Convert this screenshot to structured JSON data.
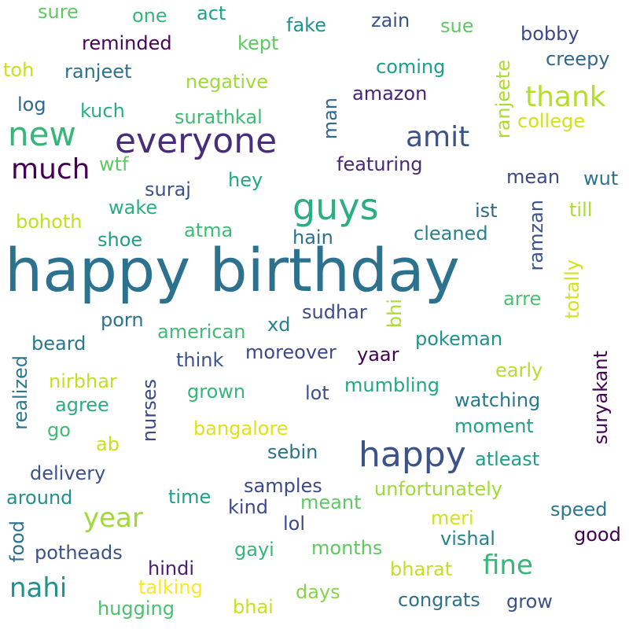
{
  "words": [
    {
      "text": "happy birthday",
      "color": "#2c728e",
      "rotated": false
    },
    {
      "text": "everyone",
      "color": "#472d7b",
      "rotated": false
    },
    {
      "text": "guys",
      "color": "#28ae80",
      "rotated": false
    },
    {
      "text": "happy",
      "color": "#3b528b",
      "rotated": false
    },
    {
      "text": "new",
      "color": "#35b779",
      "rotated": false
    },
    {
      "text": "amit",
      "color": "#3b528b",
      "rotated": false
    },
    {
      "text": "much",
      "color": "#440154",
      "rotated": false
    },
    {
      "text": "thank",
      "color": "#b5de2b",
      "rotated": false
    },
    {
      "text": "year",
      "color": "#a0da39",
      "rotated": false
    },
    {
      "text": "fine",
      "color": "#35b779",
      "rotated": false
    },
    {
      "text": "nahi",
      "color": "#21918c",
      "rotated": false
    },
    {
      "text": "sure",
      "color": "#5ec962",
      "rotated": false
    },
    {
      "text": "one",
      "color": "#35b779",
      "rotated": false
    },
    {
      "text": "act",
      "color": "#1fa187",
      "rotated": false
    },
    {
      "text": "fake",
      "color": "#21918c",
      "rotated": false
    },
    {
      "text": "zain",
      "color": "#3b528b",
      "rotated": false
    },
    {
      "text": "sue",
      "color": "#5ec962",
      "rotated": false
    },
    {
      "text": "bobby",
      "color": "#3e4989",
      "rotated": false
    },
    {
      "text": "reminded",
      "color": "#450457",
      "rotated": false
    },
    {
      "text": "kept",
      "color": "#5ec962",
      "rotated": false
    },
    {
      "text": "creepy",
      "color": "#31688e",
      "rotated": false
    },
    {
      "text": "toh",
      "color": "#c8e020",
      "rotated": false
    },
    {
      "text": "ranjeet",
      "color": "#2c728e",
      "rotated": false
    },
    {
      "text": "coming",
      "color": "#1f9e89",
      "rotated": false
    },
    {
      "text": "negative",
      "color": "#a0da39",
      "rotated": false
    },
    {
      "text": "amazon",
      "color": "#482576",
      "rotated": false
    },
    {
      "text": "log",
      "color": "#31688e",
      "rotated": false
    },
    {
      "text": "kuch",
      "color": "#28ae80",
      "rotated": false
    },
    {
      "text": "surathkal",
      "color": "#3fbc73",
      "rotated": false
    },
    {
      "text": "man",
      "color": "#31688e",
      "rotated": true
    },
    {
      "text": "ranjeete",
      "color": "#addc30",
      "rotated": true
    },
    {
      "text": "college",
      "color": "#d2e21b",
      "rotated": false
    },
    {
      "text": "featuring",
      "color": "#482878",
      "rotated": false
    },
    {
      "text": "wtf",
      "color": "#5ec962",
      "rotated": false
    },
    {
      "text": "hey",
      "color": "#22a884",
      "rotated": false
    },
    {
      "text": "mean",
      "color": "#3e4989",
      "rotated": false
    },
    {
      "text": "wut",
      "color": "#2c728e",
      "rotated": false
    },
    {
      "text": "suraj",
      "color": "#3b528b",
      "rotated": false
    },
    {
      "text": "wake",
      "color": "#29af7f",
      "rotated": false
    },
    {
      "text": "bohoth",
      "color": "#c2df23",
      "rotated": false
    },
    {
      "text": "ist",
      "color": "#31688e",
      "rotated": false
    },
    {
      "text": "till",
      "color": "#addc30",
      "rotated": false
    },
    {
      "text": "ramzan",
      "color": "#3b528b",
      "rotated": true
    },
    {
      "text": "atma",
      "color": "#3fbc73",
      "rotated": false
    },
    {
      "text": "hain",
      "color": "#2c728e",
      "rotated": false
    },
    {
      "text": "cleaned",
      "color": "#26828e",
      "rotated": false
    },
    {
      "text": "shoe",
      "color": "#1f9e89",
      "rotated": false
    },
    {
      "text": "totally",
      "color": "#d2e21b",
      "rotated": true
    },
    {
      "text": "bhi",
      "color": "#addc30",
      "rotated": true
    },
    {
      "text": "arre",
      "color": "#4ac16d",
      "rotated": false
    },
    {
      "text": "sudhar",
      "color": "#3e4989",
      "rotated": false
    },
    {
      "text": "porn",
      "color": "#2c728e",
      "rotated": false
    },
    {
      "text": "american",
      "color": "#3fbc73",
      "rotated": false
    },
    {
      "text": "xd",
      "color": "#26828e",
      "rotated": false
    },
    {
      "text": "beard",
      "color": "#2a788e",
      "rotated": false
    },
    {
      "text": "pokeman",
      "color": "#21918c",
      "rotated": false
    },
    {
      "text": "suryakant",
      "color": "#450457",
      "rotated": true
    },
    {
      "text": "think",
      "color": "#3b528b",
      "rotated": false
    },
    {
      "text": "moreover",
      "color": "#3e4989",
      "rotated": false
    },
    {
      "text": "yaar",
      "color": "#440154",
      "rotated": false
    },
    {
      "text": "early",
      "color": "#b5de2b",
      "rotated": false
    },
    {
      "text": "nirbhar",
      "color": "#c2df23",
      "rotated": false
    },
    {
      "text": "nurses",
      "color": "#3e4989",
      "rotated": true
    },
    {
      "text": "grown",
      "color": "#35b779",
      "rotated": false
    },
    {
      "text": "lot",
      "color": "#3b528b",
      "rotated": false
    },
    {
      "text": "mumbling",
      "color": "#22a884",
      "rotated": false
    },
    {
      "text": "watching",
      "color": "#2a788e",
      "rotated": false
    },
    {
      "text": "realized",
      "color": "#2a788e",
      "rotated": true
    },
    {
      "text": "agree",
      "color": "#29af7f",
      "rotated": false
    },
    {
      "text": "go",
      "color": "#3fbc73",
      "rotated": false
    },
    {
      "text": "bangalore",
      "color": "#dde318",
      "rotated": false
    },
    {
      "text": "moment",
      "color": "#1fa187",
      "rotated": false
    },
    {
      "text": "ab",
      "color": "#c8e020",
      "rotated": false
    },
    {
      "text": "sebin",
      "color": "#2c728e",
      "rotated": false
    },
    {
      "text": "atleast",
      "color": "#1f9e89",
      "rotated": false
    },
    {
      "text": "delivery",
      "color": "#3b528b",
      "rotated": false
    },
    {
      "text": "samples",
      "color": "#3e4989",
      "rotated": false
    },
    {
      "text": "unfortunately",
      "color": "#a0da39",
      "rotated": false
    },
    {
      "text": "around",
      "color": "#21918c",
      "rotated": false
    },
    {
      "text": "time",
      "color": "#1fa187",
      "rotated": false
    },
    {
      "text": "kind",
      "color": "#3e4989",
      "rotated": false
    },
    {
      "text": "meant",
      "color": "#5ec962",
      "rotated": false
    },
    {
      "text": "speed",
      "color": "#2a788e",
      "rotated": false
    },
    {
      "text": "meri",
      "color": "#d2e21b",
      "rotated": false
    },
    {
      "text": "lol",
      "color": "#3e4989",
      "rotated": false
    },
    {
      "text": "food",
      "color": "#2c728e",
      "rotated": true
    },
    {
      "text": "good",
      "color": "#440154",
      "rotated": false
    },
    {
      "text": "vishal",
      "color": "#26828e",
      "rotated": false
    },
    {
      "text": "potheads",
      "color": "#3b528b",
      "rotated": false
    },
    {
      "text": "gayi",
      "color": "#35b779",
      "rotated": false
    },
    {
      "text": "months",
      "color": "#5ec962",
      "rotated": false
    },
    {
      "text": "hindi",
      "color": "#481f71",
      "rotated": false
    },
    {
      "text": "bharat",
      "color": "#c2df23",
      "rotated": false
    },
    {
      "text": "talking",
      "color": "#fde725",
      "rotated": false
    },
    {
      "text": "days",
      "color": "#86d549",
      "rotated": false
    },
    {
      "text": "hugging",
      "color": "#4ac16d",
      "rotated": false
    },
    {
      "text": "bhai",
      "color": "#c8e020",
      "rotated": false
    },
    {
      "text": "congrats",
      "color": "#2c728e",
      "rotated": false
    },
    {
      "text": "grow",
      "color": "#3b528b",
      "rotated": false
    }
  ]
}
